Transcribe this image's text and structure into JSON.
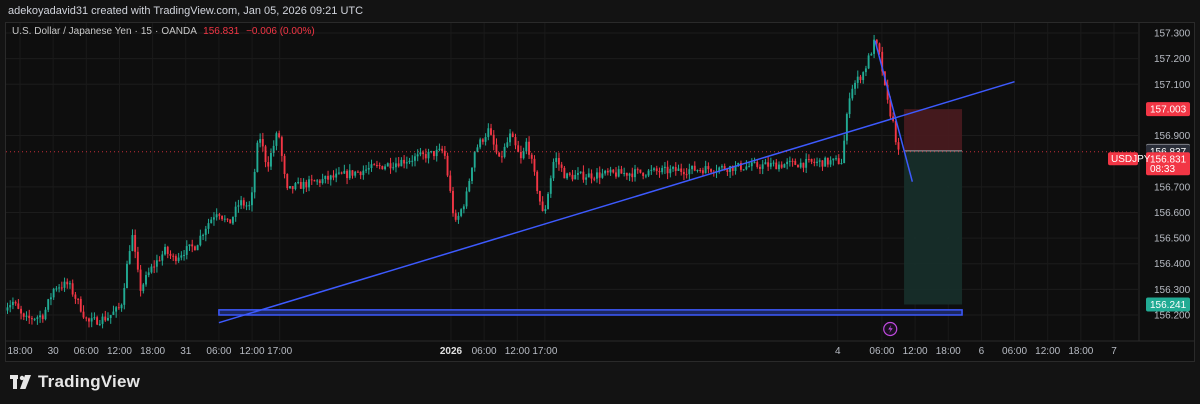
{
  "header": {
    "credit": "adekoyadavid31 created with TradingView.com, Jan 05, 2026 09:21 UTC"
  },
  "legend": {
    "symbol": "U.S. Dollar / Japanese Yen",
    "interval": "15",
    "broker": "OANDA",
    "price": "156.831",
    "change": "−0.006 (0.00%)"
  },
  "branding": {
    "name": "TradingView"
  },
  "colors": {
    "background": "#0e0e0e",
    "up": "#22ab94",
    "down": "#f23645",
    "trendline": "#3d5afe",
    "stop_zone": "#4a1b1f",
    "target_zone": "#17302b"
  },
  "chart_data": {
    "type": "candlestick",
    "symbol": "USDJPY",
    "interval": "15",
    "y_axis": {
      "ylim": [
        156.165,
        157.34
      ],
      "ticks": [
        {
          "label": "157.300",
          "value": 157.3
        },
        {
          "label": "157.200",
          "value": 157.2
        },
        {
          "label": "157.100",
          "value": 157.1
        },
        {
          "label": "156.900",
          "value": 156.9
        },
        {
          "label": "156.700",
          "value": 156.7
        },
        {
          "label": "156.600",
          "value": 156.6
        },
        {
          "label": "156.500",
          "value": 156.5
        },
        {
          "label": "156.400",
          "value": 156.4
        },
        {
          "label": "156.300",
          "value": 156.3
        },
        {
          "label": "156.200",
          "value": 156.2
        }
      ]
    },
    "x_axis": {
      "labels": [
        {
          "label": "18:00",
          "date": "2025-12-29 18:00",
          "bold": false
        },
        {
          "label": "30",
          "date": "2025-12-30 00:00",
          "bold": false
        },
        {
          "label": "06:00",
          "date": "2025-12-30 06:00",
          "bold": false
        },
        {
          "label": "12:00",
          "date": "2025-12-30 12:00",
          "bold": false
        },
        {
          "label": "18:00",
          "date": "2025-12-30 18:00",
          "bold": false
        },
        {
          "label": "31",
          "date": "2025-12-31 00:00",
          "bold": false
        },
        {
          "label": "06:00",
          "date": "2025-12-31 06:00",
          "bold": false
        },
        {
          "label": "12:00",
          "date": "2025-12-31 12:00",
          "bold": false
        },
        {
          "label": "17:00",
          "date": "2025-12-31 17:00",
          "bold": false
        },
        {
          "label": "2026",
          "date": "2026-01-02 00:00",
          "bold": true
        },
        {
          "label": "06:00",
          "date": "2026-01-02 06:00",
          "bold": false
        },
        {
          "label": "12:00",
          "date": "2026-01-02 12:00",
          "bold": false
        },
        {
          "label": "17:00",
          "date": "2026-01-02 17:00",
          "bold": false
        },
        {
          "label": "4",
          "date": "2026-01-04 22:00",
          "bold": false
        },
        {
          "label": "06:00",
          "date": "2026-01-05 06:00",
          "bold": false
        },
        {
          "label": "12:00",
          "date": "2026-01-05 12:00",
          "bold": false
        },
        {
          "label": "18:00",
          "date": "2026-01-05 18:00",
          "bold": false
        },
        {
          "label": "6",
          "date": "2026-01-06 00:00",
          "bold": false
        },
        {
          "label": "06:00",
          "date": "2026-01-06 06:00",
          "bold": false
        },
        {
          "label": "12:00",
          "date": "2026-01-06 12:00",
          "bold": false
        },
        {
          "label": "18:00",
          "date": "2026-01-06 18:00",
          "bold": false
        },
        {
          "label": "7",
          "date": "2026-01-07 00:00",
          "bold": false
        }
      ]
    },
    "price_tags": {
      "stop": {
        "label": "157.003",
        "value": 157.003
      },
      "entry": {
        "label": "156.840",
        "value": 156.84
      },
      "crosshair": {
        "label": "156.837",
        "value": 156.837
      },
      "current": {
        "symbol": "USDJPY",
        "label": "156.831",
        "value": 156.831,
        "countdown": "08:33"
      },
      "target": {
        "label": "156.241",
        "value": 156.241
      }
    },
    "last_price_line": 156.837,
    "path_keypoints": [
      [
        "2025-12-29 15:00",
        156.23
      ],
      [
        "2025-12-29 17:00",
        156.25
      ],
      [
        "2025-12-29 19:00",
        156.18
      ],
      [
        "2025-12-29 22:30",
        156.2
      ],
      [
        "2025-12-30 00:30",
        156.31
      ],
      [
        "2025-12-30 03:00",
        156.32
      ],
      [
        "2025-12-30 05:00",
        156.24
      ],
      [
        "2025-12-30 06:30",
        156.17
      ],
      [
        "2025-12-30 10:00",
        156.19
      ],
      [
        "2025-12-30 12:30",
        156.23
      ],
      [
        "2025-12-30 14:30",
        156.52
      ],
      [
        "2025-12-30 16:00",
        156.3
      ],
      [
        "2025-12-30 18:00",
        156.38
      ],
      [
        "2025-12-30 20:30",
        156.45
      ],
      [
        "2025-12-30 22:00",
        156.42
      ],
      [
        "2025-12-31 00:00",
        156.45
      ],
      [
        "2025-12-31 02:00",
        156.47
      ],
      [
        "2025-12-31 04:00",
        156.55
      ],
      [
        "2025-12-31 06:00",
        156.61
      ],
      [
        "2025-12-31 08:00",
        156.55
      ],
      [
        "2025-12-31 10:00",
        156.64
      ],
      [
        "2025-12-31 12:00",
        156.62
      ],
      [
        "2025-12-31 13:30",
        156.91
      ],
      [
        "2025-12-31 15:00",
        156.78
      ],
      [
        "2025-12-31 17:00",
        156.92
      ],
      [
        "2025-12-31 18:30",
        156.68
      ],
      [
        "2025-12-31 20:00",
        156.7
      ],
      [
        "2026-01-01 23:00",
        156.84
      ],
      [
        "2026-01-02 01:00",
        156.55
      ],
      [
        "2026-01-02 03:00",
        156.66
      ],
      [
        "2026-01-02 04:30",
        156.84
      ],
      [
        "2026-01-02 07:00",
        156.92
      ],
      [
        "2026-01-02 09:00",
        156.8
      ],
      [
        "2026-01-02 11:00",
        156.9
      ],
      [
        "2026-01-02 13:00",
        156.8
      ],
      [
        "2026-01-02 14:00",
        156.88
      ],
      [
        "2026-01-02 16:00",
        156.68
      ],
      [
        "2026-01-02 17:00",
        156.58
      ],
      [
        "2026-01-02 19:00",
        156.82
      ],
      [
        "2026-01-02 21:00",
        156.74
      ],
      [
        "2026-01-04 23:00",
        156.8
      ],
      [
        "2026-01-05 00:30",
        157.08
      ],
      [
        "2026-01-05 03:00",
        157.15
      ],
      [
        "2026-01-05 05:00",
        157.27
      ],
      [
        "2026-01-05 06:00",
        157.2
      ],
      [
        "2026-01-05 07:00",
        157.05
      ],
      [
        "2026-01-05 08:30",
        156.93
      ],
      [
        "2026-01-05 09:00",
        156.85
      ],
      [
        "2026-01-05 09:15",
        156.83
      ]
    ],
    "candle_count": 330
  },
  "drawings": {
    "trendline_support": {
      "from": [
        "2025-12-31 06:00",
        156.17
      ],
      "to": [
        "2026-01-06 06:00",
        157.11
      ]
    },
    "trendline_down": {
      "from": [
        "2026-01-05 04:45",
        157.27
      ],
      "to": [
        "2026-01-05 11:30",
        156.72
      ]
    },
    "support_zone": {
      "from_time": "2025-12-31 06:00",
      "to_time": "2026-01-05 20:30",
      "low": 156.2,
      "high": 156.22
    },
    "position": {
      "start": "2026-01-05 10:00",
      "end": "2026-01-05 20:30",
      "entry": 156.84,
      "stop": 157.003,
      "target": 156.241
    }
  }
}
